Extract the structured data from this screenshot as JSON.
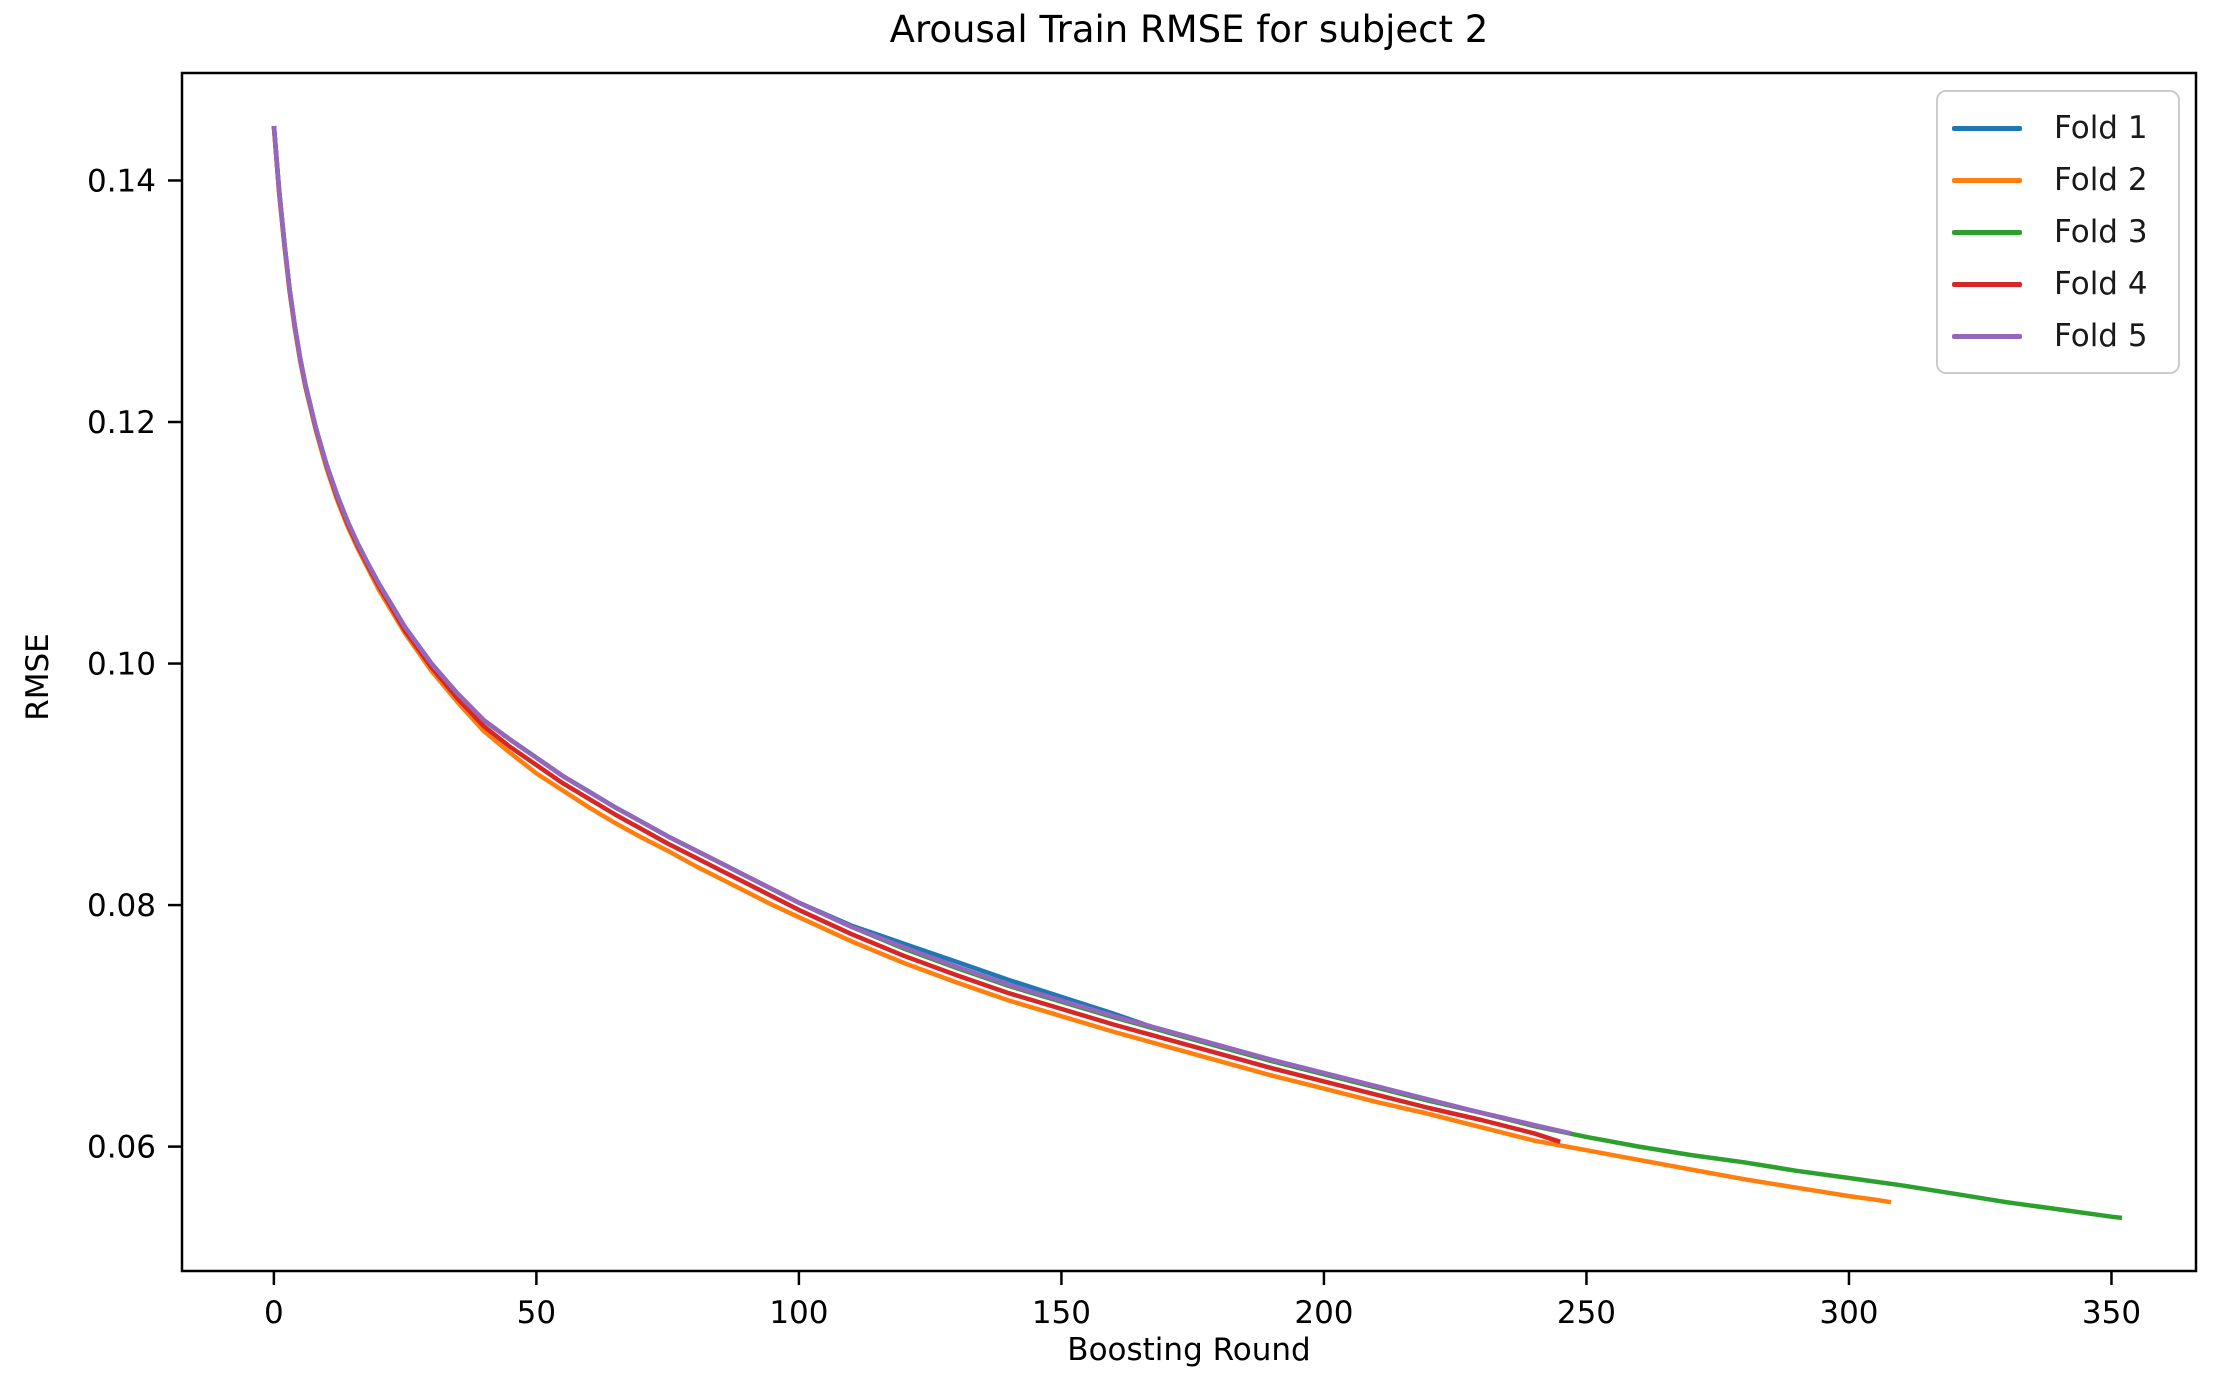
{
  "chart_data": {
    "type": "line",
    "title": "Arousal Train RMSE for subject 2",
    "xlabel": "Boosting Round",
    "ylabel": "RMSE",
    "xlim": [
      -17.5,
      366.1
    ],
    "ylim": [
      0.0497,
      0.1489
    ],
    "xticks": [
      0,
      50,
      100,
      150,
      200,
      250,
      300,
      350
    ],
    "xtick_labels": [
      "0",
      "50",
      "100",
      "150",
      "200",
      "250",
      "300",
      "350"
    ],
    "yticks": [
      0.06,
      0.08,
      0.1,
      0.12,
      0.14
    ],
    "ytick_labels": [
      "0.06",
      "0.08",
      "0.10",
      "0.12",
      "0.14"
    ],
    "grid": false,
    "legend_position": "upper right",
    "axis_color": "#000000",
    "line_width": 4.5,
    "series": [
      {
        "name": "Fold 1",
        "color": "#1f77b4",
        "x": [
          0,
          1,
          2,
          3,
          4,
          5,
          6,
          8,
          10,
          12,
          14,
          16,
          18,
          20,
          25,
          30,
          35,
          40,
          45,
          50,
          55,
          60,
          65,
          70,
          75,
          80,
          85,
          90,
          95,
          100,
          110,
          120,
          130,
          140,
          150,
          160,
          170,
          180,
          190,
          200,
          210,
          220,
          230,
          235
        ],
        "y": [
          0.1445,
          0.1392,
          0.1348,
          0.131,
          0.1279,
          0.1253,
          0.1231,
          0.1195,
          0.1165,
          0.114,
          0.1118,
          0.1099,
          0.1082,
          0.1066,
          0.103,
          0.1,
          0.0975,
          0.0953,
          0.0937,
          0.0922,
          0.0907,
          0.0894,
          0.0881,
          0.0869,
          0.0857,
          0.0846,
          0.0835,
          0.0824,
          0.0813,
          0.0802,
          0.0783,
          0.0768,
          0.0753,
          0.0738,
          0.0724,
          0.071,
          0.0695,
          0.0683,
          0.0671,
          0.066,
          0.0649,
          0.0638,
          0.0628,
          0.0623
        ]
      },
      {
        "name": "Fold 2",
        "color": "#ff7f0e",
        "x": [
          0,
          1,
          2,
          3,
          4,
          5,
          6,
          8,
          10,
          12,
          14,
          16,
          18,
          20,
          25,
          30,
          35,
          40,
          45,
          50,
          55,
          60,
          65,
          70,
          75,
          80,
          85,
          90,
          95,
          100,
          110,
          120,
          130,
          140,
          150,
          160,
          170,
          180,
          190,
          200,
          210,
          220,
          230,
          240,
          250,
          260,
          270,
          280,
          290,
          300,
          305,
          308
        ],
        "y": [
          0.1445,
          0.139,
          0.1346,
          0.1308,
          0.1277,
          0.1251,
          0.1229,
          0.1193,
          0.1162,
          0.1136,
          0.1114,
          0.1095,
          0.1078,
          0.1061,
          0.1025,
          0.0994,
          0.0968,
          0.0944,
          0.0926,
          0.0909,
          0.0895,
          0.0881,
          0.0868,
          0.0856,
          0.0845,
          0.0833,
          0.0822,
          0.0811,
          0.08,
          0.079,
          0.077,
          0.0752,
          0.0736,
          0.0721,
          0.0708,
          0.0695,
          0.0683,
          0.0671,
          0.0659,
          0.0648,
          0.0637,
          0.0627,
          0.0616,
          0.0605,
          0.0597,
          0.0589,
          0.0581,
          0.0573,
          0.0566,
          0.0559,
          0.0556,
          0.0554
        ]
      },
      {
        "name": "Fold 3",
        "color": "#2ca02c",
        "x": [
          0,
          1,
          2,
          3,
          4,
          5,
          6,
          8,
          10,
          12,
          14,
          16,
          18,
          20,
          25,
          30,
          35,
          40,
          45,
          50,
          55,
          60,
          65,
          70,
          75,
          80,
          85,
          90,
          95,
          100,
          110,
          120,
          130,
          140,
          150,
          160,
          170,
          180,
          190,
          200,
          210,
          220,
          230,
          240,
          250,
          260,
          270,
          280,
          290,
          300,
          310,
          320,
          330,
          340,
          350,
          352
        ],
        "y": [
          0.1445,
          0.1392,
          0.1348,
          0.131,
          0.1279,
          0.1253,
          0.1231,
          0.1195,
          0.1165,
          0.114,
          0.1118,
          0.1099,
          0.1082,
          0.1066,
          0.103,
          0.1,
          0.0975,
          0.0953,
          0.0937,
          0.0922,
          0.0907,
          0.0894,
          0.0881,
          0.0869,
          0.0857,
          0.0846,
          0.0835,
          0.0824,
          0.0813,
          0.0802,
          0.0782,
          0.0764,
          0.0748,
          0.0733,
          0.072,
          0.0707,
          0.0695,
          0.0683,
          0.0671,
          0.066,
          0.0649,
          0.0638,
          0.0628,
          0.0617,
          0.0608,
          0.06,
          0.0593,
          0.0587,
          0.058,
          0.0574,
          0.0568,
          0.0561,
          0.0554,
          0.0548,
          0.0542,
          0.0541
        ]
      },
      {
        "name": "Fold 4",
        "color": "#d62728",
        "x": [
          0,
          1,
          2,
          3,
          4,
          5,
          6,
          8,
          10,
          12,
          14,
          16,
          18,
          20,
          25,
          30,
          35,
          40,
          45,
          50,
          55,
          60,
          65,
          70,
          75,
          80,
          85,
          90,
          95,
          100,
          110,
          120,
          130,
          140,
          150,
          160,
          170,
          180,
          190,
          200,
          210,
          220,
          230,
          240,
          245
        ],
        "y": [
          0.1445,
          0.1391,
          0.1347,
          0.1309,
          0.1278,
          0.1252,
          0.123,
          0.1194,
          0.1164,
          0.1138,
          0.1116,
          0.1097,
          0.108,
          0.1064,
          0.1027,
          0.0997,
          0.0971,
          0.0948,
          0.0931,
          0.0916,
          0.0901,
          0.0888,
          0.0875,
          0.0863,
          0.0851,
          0.084,
          0.0829,
          0.0818,
          0.0807,
          0.0796,
          0.0776,
          0.0758,
          0.0742,
          0.0727,
          0.0714,
          0.0701,
          0.0689,
          0.0677,
          0.0665,
          0.0654,
          0.0643,
          0.0632,
          0.0622,
          0.0611,
          0.0604
        ]
      },
      {
        "name": "Fold 5",
        "color": "#9467bd",
        "x": [
          0,
          1,
          2,
          3,
          4,
          5,
          6,
          8,
          10,
          12,
          14,
          16,
          18,
          20,
          25,
          30,
          35,
          40,
          45,
          50,
          55,
          60,
          65,
          70,
          75,
          80,
          85,
          90,
          95,
          100,
          110,
          120,
          130,
          140,
          150,
          160,
          170,
          180,
          190,
          200,
          210,
          220,
          230,
          240,
          247
        ],
        "y": [
          0.1445,
          0.1392,
          0.1348,
          0.131,
          0.1279,
          0.1253,
          0.1231,
          0.1195,
          0.1165,
          0.114,
          0.1118,
          0.1099,
          0.1082,
          0.1066,
          0.103,
          0.1,
          0.0975,
          0.0953,
          0.0937,
          0.0922,
          0.0907,
          0.0894,
          0.0881,
          0.0869,
          0.0857,
          0.0846,
          0.0835,
          0.0824,
          0.0813,
          0.0802,
          0.0782,
          0.0765,
          0.0749,
          0.0734,
          0.0721,
          0.0708,
          0.0696,
          0.0684,
          0.0672,
          0.0661,
          0.065,
          0.0639,
          0.0628,
          0.0618,
          0.0611
        ]
      }
    ]
  }
}
